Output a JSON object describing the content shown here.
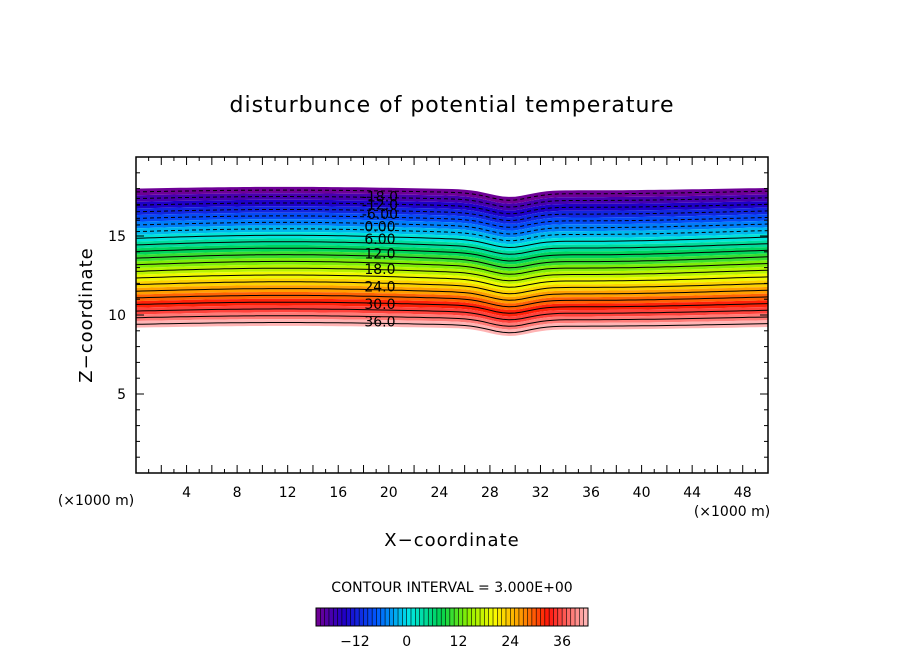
{
  "chart_data": {
    "type": "contour",
    "title": "disturbunce of potential temperature",
    "xlabel": "X−coordinate",
    "ylabel": "Z−coordinate",
    "x_unit": "(×1000 m)",
    "y_unit": "(×1000 m)",
    "xlim": [
      0,
      50
    ],
    "ylim": [
      0,
      20
    ],
    "x_ticks": [
      "4",
      "8",
      "12",
      "16",
      "20",
      "24",
      "28",
      "32",
      "36",
      "40",
      "44",
      "48"
    ],
    "y_ticks": [
      "5",
      "10",
      "15"
    ],
    "contour_interval": 3.0,
    "contour_interval_label": "CONTOUR INTERVAL = 3.000E+00",
    "levels": [
      -21,
      -18,
      -15,
      -12,
      -9,
      -6,
      -3,
      0,
      3,
      6,
      9,
      12,
      15,
      18,
      21,
      24,
      27,
      30,
      33,
      36,
      39
    ],
    "contour_labels": [
      {
        "text": "-18.0",
        "value": -18,
        "y": 17.5
      },
      {
        "text": "-12.0",
        "value": -12,
        "y": 17.0
      },
      {
        "text": "-6.00",
        "value": -6,
        "y": 16.4
      },
      {
        "text": "0.00",
        "value": 0,
        "y": 15.6
      },
      {
        "text": "6.00",
        "value": 6,
        "y": 14.8
      },
      {
        "text": "12.0",
        "value": 12,
        "y": 13.9
      },
      {
        "text": "18.0",
        "value": 18,
        "y": 12.9
      },
      {
        "text": "24.0",
        "value": 24,
        "y": 11.8
      },
      {
        "text": "30.0",
        "value": 30,
        "y": 10.7
      },
      {
        "text": "36.0",
        "value": 36,
        "y": 9.6
      }
    ],
    "band_top_z": 18.0,
    "band_bottom_z": 9.2,
    "colorbar": {
      "ticks": [
        "−12",
        "0",
        "12",
        "24",
        "36"
      ],
      "tick_values": [
        -12,
        0,
        12,
        24,
        36
      ],
      "range": [
        -21,
        42
      ]
    },
    "grid": false
  }
}
